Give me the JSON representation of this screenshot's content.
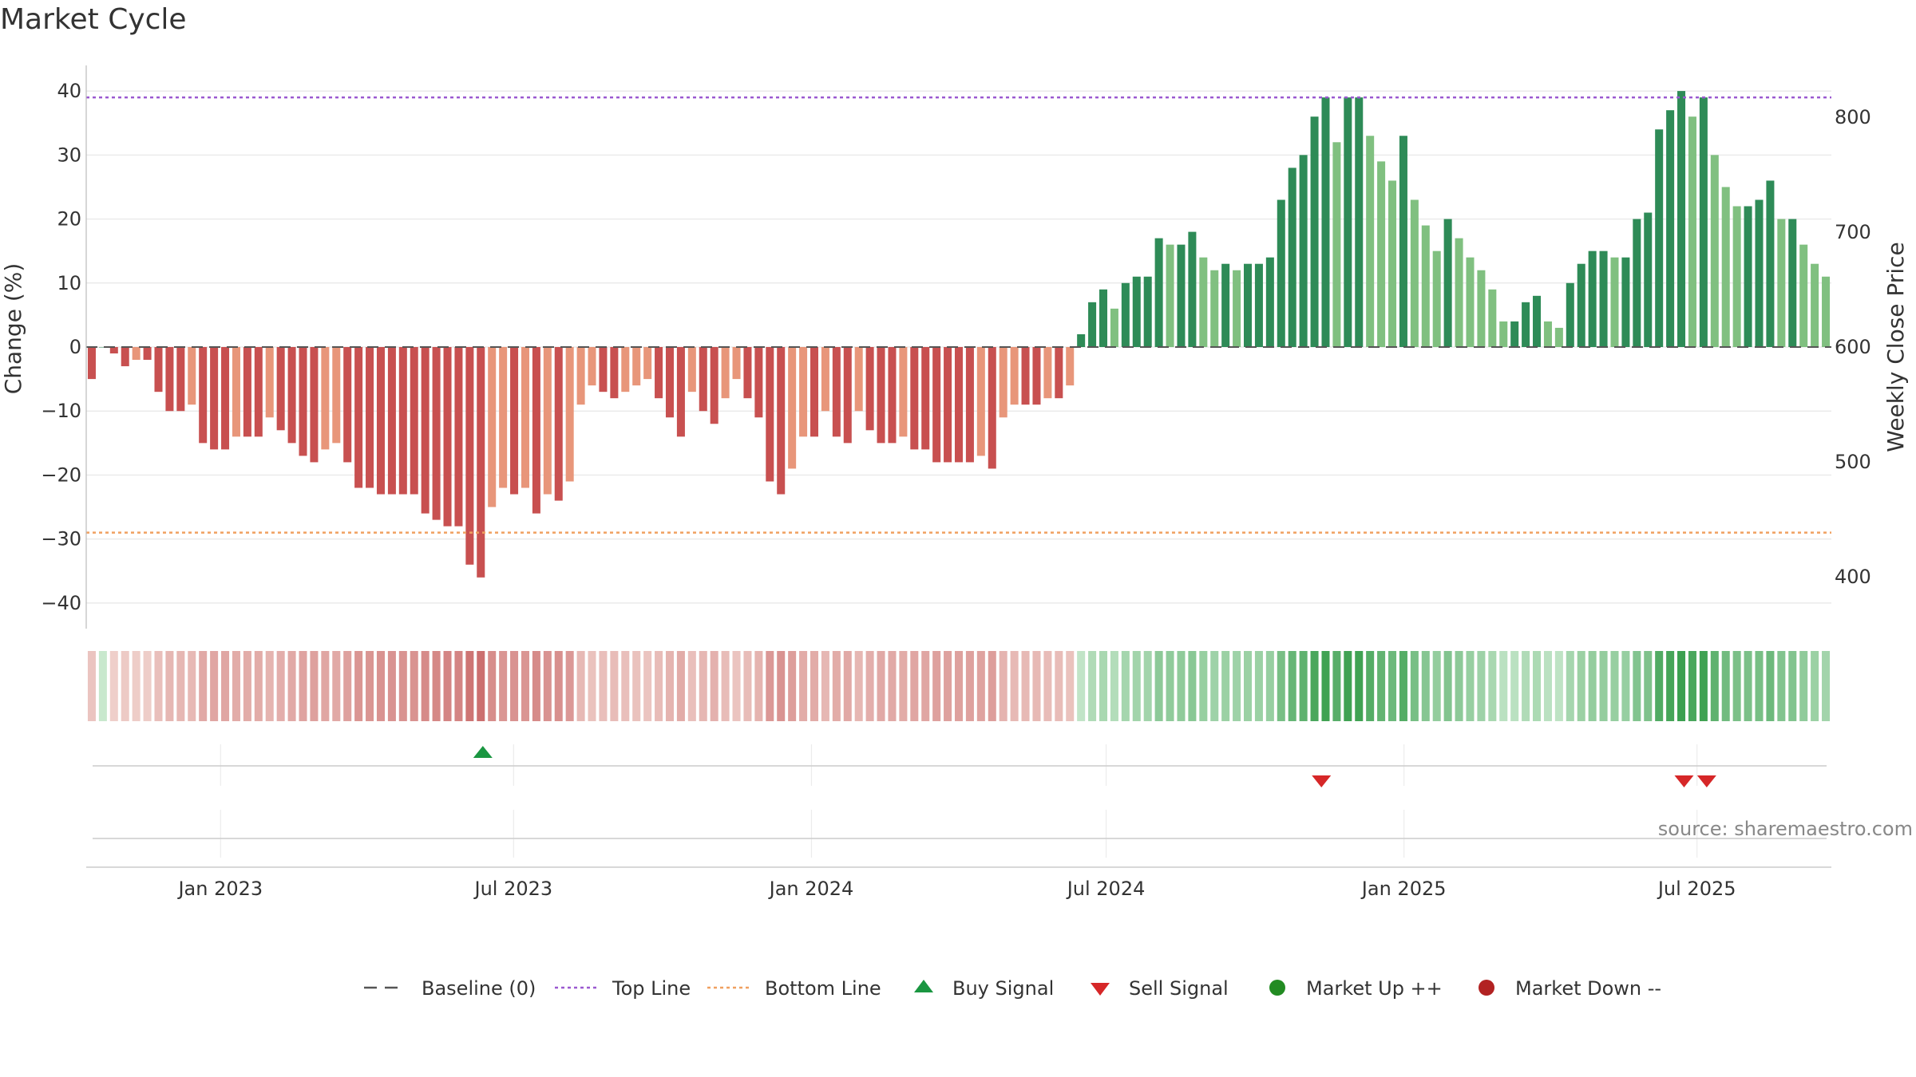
{
  "title": "Market Cycle",
  "source": "source: sharemaestro.com",
  "chart_data": {
    "type": "bar",
    "title": "Market Cycle",
    "ylabel": "Change (%)",
    "ylabel_right": "Weekly Close Price",
    "ylim": [
      -44,
      44
    ],
    "yticks": [
      40,
      30,
      20,
      10,
      0,
      -10,
      -20,
      -30,
      -40
    ],
    "ylim_right": [
      355,
      845
    ],
    "yticks_right": [
      800,
      700,
      600,
      500,
      400
    ],
    "xticks": [
      "Jan 2023",
      "Jul 2023",
      "Jan 2024",
      "Jul 2024",
      "Jan 2025",
      "Jul 2025"
    ],
    "x_range": [
      "2022-10-10",
      "2025-09-22"
    ],
    "top_line": 39,
    "bottom_line": -29,
    "baseline": 0,
    "colors": {
      "up_dark": "#2e8b57",
      "up_light": "#80c080",
      "down_dark": "#c85050",
      "down_light": "#e8967a",
      "top_line": "#9b59d0",
      "bottom_line": "#f0a060",
      "baseline": "#555555",
      "buy": "#1a9641",
      "sell": "#d62728",
      "market_up": "#228b22",
      "market_down": "#b22222"
    },
    "values": [
      -5,
      0,
      -1,
      -3,
      -2,
      -2,
      -7,
      -10,
      -10,
      -9,
      -15,
      -16,
      -16,
      -14,
      -14,
      -14,
      -11,
      -13,
      -15,
      -17,
      -18,
      -16,
      -15,
      -18,
      -22,
      -22,
      -23,
      -23,
      -23,
      -23,
      -26,
      -27,
      -28,
      -28,
      -34,
      -36,
      -25,
      -22,
      -23,
      -22,
      -26,
      -23,
      -24,
      -21,
      -9,
      -6,
      -7,
      -8,
      -7,
      -6,
      -5,
      -8,
      -11,
      -14,
      -7,
      -10,
      -12,
      -8,
      -5,
      -8,
      -11,
      -21,
      -23,
      -19,
      -14,
      -14,
      -10,
      -14,
      -15,
      -10,
      -13,
      -15,
      -15,
      -14,
      -16,
      -16,
      -18,
      -18,
      -18,
      -18,
      -17,
      -19,
      -11,
      -9,
      -9,
      -9,
      -8,
      -8,
      -6,
      2,
      7,
      9,
      6,
      10,
      11,
      11,
      17,
      16,
      16,
      18,
      14,
      12,
      13,
      12,
      13,
      13,
      14,
      23,
      28,
      30,
      36,
      39,
      32,
      39,
      39,
      33,
      29,
      26,
      33,
      23,
      19,
      15,
      20,
      17,
      14,
      12,
      9,
      4,
      4,
      7,
      8,
      4,
      3,
      10,
      13,
      15,
      15,
      14,
      14,
      20,
      21,
      34,
      37,
      40,
      36,
      39,
      30,
      25,
      22,
      22,
      23,
      26,
      20,
      20,
      16,
      13,
      11
    ],
    "signals": [
      {
        "type": "buy",
        "date": "2023-06-12"
      },
      {
        "type": "sell",
        "date": "2024-11-11"
      },
      {
        "type": "sell",
        "date": "2025-06-23"
      },
      {
        "type": "sell",
        "date": "2025-07-07"
      }
    ]
  },
  "legend": [
    {
      "label": "Baseline (0)",
      "symbol": "dash",
      "color": "#555555"
    },
    {
      "label": "Top Line",
      "symbol": "dotted",
      "color": "#9b59d0"
    },
    {
      "label": "Bottom Line",
      "symbol": "dotted",
      "color": "#f0a060"
    },
    {
      "label": "Buy Signal",
      "symbol": "triangle-up",
      "color": "#1a9641"
    },
    {
      "label": "Sell Signal",
      "symbol": "triangle-down",
      "color": "#d62728"
    },
    {
      "label": "Market Up ++",
      "symbol": "circle",
      "color": "#228b22"
    },
    {
      "label": "Market Down --",
      "symbol": "circle",
      "color": "#b22222"
    }
  ]
}
